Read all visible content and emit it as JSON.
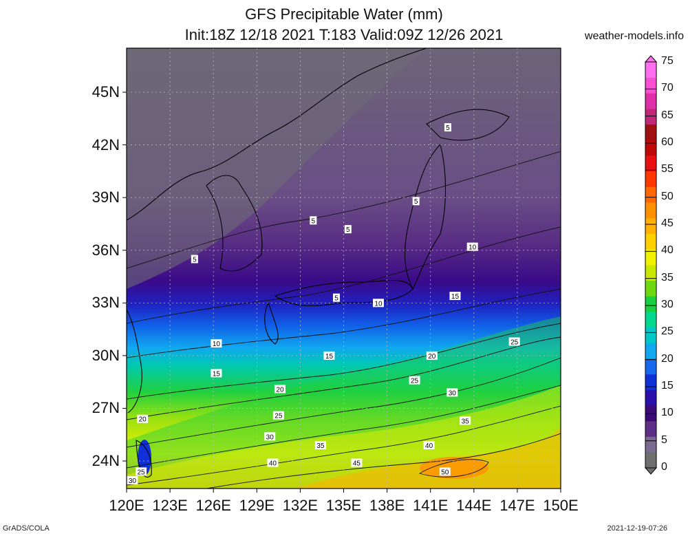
{
  "title": "GFS Precipitable Water (mm)",
  "subtitle": "Init:18Z 12/18 2021 T:183 Valid:09Z 12/26 2021",
  "site": "weather-models.info",
  "footer_left": "GrADS/COLA",
  "footer_right": "2021-12-19-07:26",
  "lat_labels": [
    {
      "text": "45N",
      "lat": 45
    },
    {
      "text": "42N",
      "lat": 42
    },
    {
      "text": "39N",
      "lat": 39
    },
    {
      "text": "36N",
      "lat": 36
    },
    {
      "text": "33N",
      "lat": 33
    },
    {
      "text": "30N",
      "lat": 30
    },
    {
      "text": "27N",
      "lat": 27
    },
    {
      "text": "24N",
      "lat": 24
    }
  ],
  "lon_labels": [
    {
      "text": "120E",
      "lon": 120
    },
    {
      "text": "123E",
      "lon": 123
    },
    {
      "text": "126E",
      "lon": 126
    },
    {
      "text": "129E",
      "lon": 129
    },
    {
      "text": "132E",
      "lon": 132
    },
    {
      "text": "135E",
      "lon": 135
    },
    {
      "text": "138E",
      "lon": 138
    },
    {
      "text": "141E",
      "lon": 141
    },
    {
      "text": "144E",
      "lon": 144
    },
    {
      "text": "147E",
      "lon": 147
    },
    {
      "text": "150E",
      "lon": 150
    }
  ],
  "colorbar": {
    "labels": [
      "0",
      "5",
      "10",
      "15",
      "20",
      "25",
      "30",
      "35",
      "40",
      "45",
      "50",
      "55",
      "60",
      "65",
      "70",
      "75"
    ],
    "colors": [
      "#6e6e6e",
      "#7a6a8e",
      "#5e2f86",
      "#3b0a78",
      "#2a10a8",
      "#1030d8",
      "#1868ee",
      "#10a8f0",
      "#00c8c8",
      "#00d890",
      "#18d040",
      "#70d810",
      "#c8e800",
      "#f0f000",
      "#ffd000",
      "#ffb000",
      "#ff9000",
      "#ff6800",
      "#ff3800",
      "#e81010",
      "#c00808",
      "#a01010",
      "#c02878",
      "#e030a8",
      "#f850d0",
      "#ff70f0"
    ]
  },
  "contour_labels": [
    {
      "text": "5",
      "lon": 142.2,
      "lat": 43.0
    },
    {
      "text": "5",
      "lon": 140.0,
      "lat": 38.8
    },
    {
      "text": "5",
      "lon": 132.9,
      "lat": 37.7
    },
    {
      "text": "5",
      "lon": 135.3,
      "lat": 37.2
    },
    {
      "text": "5",
      "lon": 124.7,
      "lat": 35.5
    },
    {
      "text": "5",
      "lon": 134.5,
      "lat": 33.3
    },
    {
      "text": "10",
      "lon": 143.9,
      "lat": 36.2
    },
    {
      "text": "10",
      "lon": 137.4,
      "lat": 33.0
    },
    {
      "text": "10",
      "lon": 126.2,
      "lat": 30.7
    },
    {
      "text": "15",
      "lon": 142.7,
      "lat": 33.4
    },
    {
      "text": "15",
      "lon": 134.0,
      "lat": 30.0
    },
    {
      "text": "15",
      "lon": 126.2,
      "lat": 29.0
    },
    {
      "text": "20",
      "lon": 141.1,
      "lat": 30.0
    },
    {
      "text": "20",
      "lon": 130.6,
      "lat": 28.1
    },
    {
      "text": "20",
      "lon": 121.1,
      "lat": 26.4
    },
    {
      "text": "25",
      "lon": 146.8,
      "lat": 30.8
    },
    {
      "text": "25",
      "lon": 139.9,
      "lat": 28.6
    },
    {
      "text": "25",
      "lon": 130.5,
      "lat": 26.6
    },
    {
      "text": "25",
      "lon": 121.0,
      "lat": 23.4
    },
    {
      "text": "30",
      "lon": 142.5,
      "lat": 27.9
    },
    {
      "text": "30",
      "lon": 129.9,
      "lat": 25.4
    },
    {
      "text": "30",
      "lon": 120.4,
      "lat": 22.9
    },
    {
      "text": "35",
      "lon": 143.4,
      "lat": 26.3
    },
    {
      "text": "35",
      "lon": 133.4,
      "lat": 24.9
    },
    {
      "text": "40",
      "lon": 140.9,
      "lat": 24.9
    },
    {
      "text": "40",
      "lon": 130.1,
      "lat": 23.9
    },
    {
      "text": "45",
      "lon": 135.9,
      "lat": 23.9
    },
    {
      "text": "50",
      "lon": 142.0,
      "lat": 23.4
    }
  ]
}
